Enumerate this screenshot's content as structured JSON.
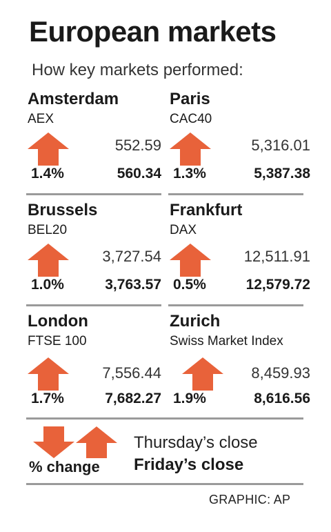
{
  "header": {
    "title": "European markets",
    "subtitle": "How key markets performed:"
  },
  "chart_data": {
    "type": "table",
    "markets": [
      {
        "city": "Amsterdam",
        "index": "AEX",
        "thursday_close": "552.59",
        "friday_close": "560.34",
        "pct_change": "1.4%",
        "direction": "up"
      },
      {
        "city": "Paris",
        "index": "CAC40",
        "thursday_close": "5,316.01",
        "friday_close": "5,387.38",
        "pct_change": "1.3%",
        "direction": "up"
      },
      {
        "city": "Brussels",
        "index": "BEL20",
        "thursday_close": "3,727.54",
        "friday_close": "3,763.57",
        "pct_change": "1.0%",
        "direction": "up"
      },
      {
        "city": "Frankfurt",
        "index": "DAX",
        "thursday_close": "12,511.91",
        "friday_close": "12,579.72",
        "pct_change": "0.5%",
        "direction": "up"
      },
      {
        "city": "London",
        "index": "FTSE 100",
        "thursday_close": "7,556.44",
        "friday_close": "7,682.27",
        "pct_change": "1.7%",
        "direction": "up"
      },
      {
        "city": "Zurich",
        "index": "Swiss Market Index",
        "thursday_close": "8,459.93",
        "friday_close": "8,616.56",
        "pct_change": "1.9%",
        "direction": "up"
      }
    ]
  },
  "legend": {
    "thursday_label": "Thursday’s close",
    "friday_label": "Friday’s close",
    "pct_label": "% change"
  },
  "credit": "GRAPHIC: AP",
  "colors": {
    "arrow": "#e8623a",
    "divider": "#9a9a9a"
  },
  "icons": {
    "up": "up-arrow-icon",
    "down": "down-arrow-icon"
  }
}
